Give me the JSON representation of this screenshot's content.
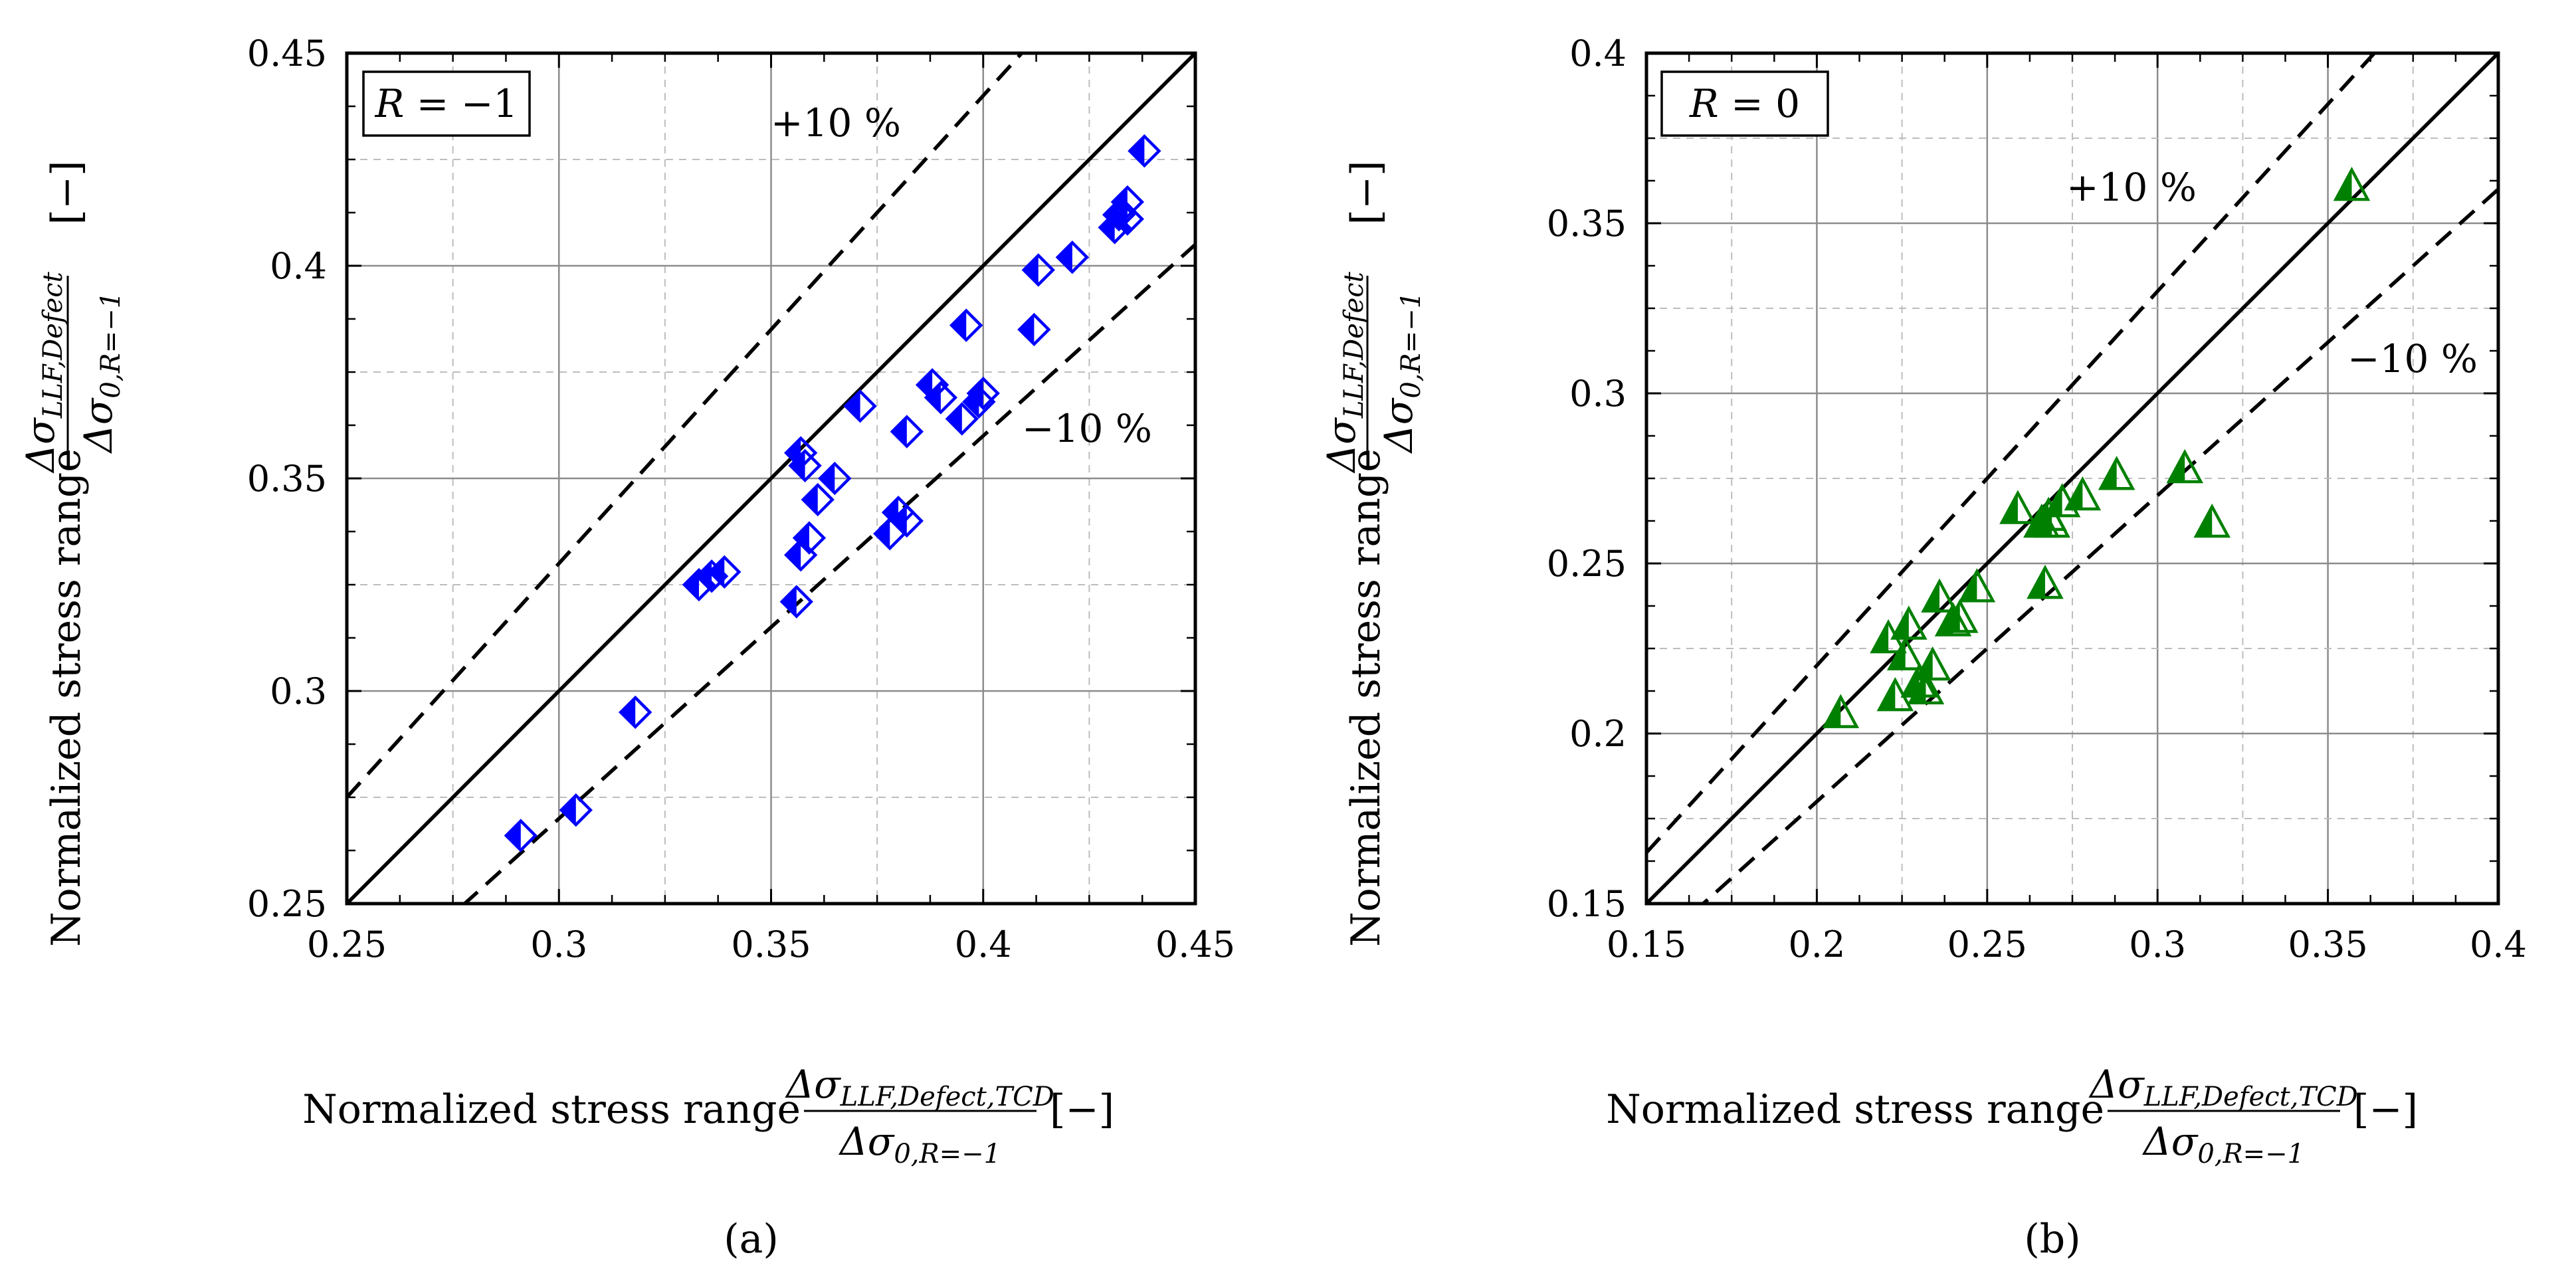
{
  "chart_data": [
    {
      "type": "scatter",
      "panel_label": "(a)",
      "annotation_box": {
        "lhs": "R",
        "eq": "=",
        "rhs": "−1"
      },
      "band_labels": {
        "upper": "+10 %",
        "lower": "−10 %"
      },
      "xlabel": {
        "prefix": "Normalized stress range",
        "num_sym": "Δσ",
        "num_sub": "LLF,Defect,TCD",
        "den_sym": "Δσ",
        "den_sub": "0,R=−1",
        "unit": "[−]"
      },
      "ylabel": {
        "prefix": "Normalized stress range",
        "num_sym": "Δσ",
        "num_sub": "LLF,Defect",
        "den_sym": "Δσ",
        "den_sub": "0,R=−1",
        "unit": "[−]"
      },
      "xlim": [
        0.25,
        0.45
      ],
      "ylim": [
        0.25,
        0.45
      ],
      "xticks": [
        0.25,
        0.3,
        0.35,
        0.4,
        0.45
      ],
      "yticks": [
        0.25,
        0.3,
        0.35,
        0.4,
        0.45
      ],
      "xtick_labels": [
        "0.25",
        "0.3",
        "0.35",
        "0.4",
        "0.45"
      ],
      "ytick_labels": [
        "0.25",
        "0.3",
        "0.35",
        "0.4",
        "0.45"
      ],
      "grid": true,
      "reference_lines": [
        {
          "type": "equality",
          "factor": 1.0,
          "style": "solid"
        },
        {
          "type": "band",
          "factor": 1.1,
          "style": "dashed"
        },
        {
          "type": "band",
          "factor": 0.9,
          "style": "dashed"
        }
      ],
      "marker": {
        "shape": "half-filled-diamond",
        "color": "#0000ff"
      },
      "points": [
        {
          "x": 0.291,
          "y": 0.266
        },
        {
          "x": 0.304,
          "y": 0.272
        },
        {
          "x": 0.318,
          "y": 0.295
        },
        {
          "x": 0.333,
          "y": 0.325
        },
        {
          "x": 0.336,
          "y": 0.327
        },
        {
          "x": 0.339,
          "y": 0.328
        },
        {
          "x": 0.356,
          "y": 0.321
        },
        {
          "x": 0.357,
          "y": 0.332
        },
        {
          "x": 0.359,
          "y": 0.336
        },
        {
          "x": 0.357,
          "y": 0.356
        },
        {
          "x": 0.358,
          "y": 0.353
        },
        {
          "x": 0.361,
          "y": 0.345
        },
        {
          "x": 0.365,
          "y": 0.35
        },
        {
          "x": 0.371,
          "y": 0.367
        },
        {
          "x": 0.378,
          "y": 0.337
        },
        {
          "x": 0.38,
          "y": 0.342
        },
        {
          "x": 0.382,
          "y": 0.34
        },
        {
          "x": 0.382,
          "y": 0.361
        },
        {
          "x": 0.388,
          "y": 0.372
        },
        {
          "x": 0.39,
          "y": 0.369
        },
        {
          "x": 0.395,
          "y": 0.364
        },
        {
          "x": 0.396,
          "y": 0.386
        },
        {
          "x": 0.399,
          "y": 0.368
        },
        {
          "x": 0.4,
          "y": 0.37
        },
        {
          "x": 0.412,
          "y": 0.385
        },
        {
          "x": 0.413,
          "y": 0.399
        },
        {
          "x": 0.421,
          "y": 0.402
        },
        {
          "x": 0.431,
          "y": 0.409
        },
        {
          "x": 0.432,
          "y": 0.412
        },
        {
          "x": 0.434,
          "y": 0.411
        },
        {
          "x": 0.434,
          "y": 0.415
        },
        {
          "x": 0.438,
          "y": 0.427
        }
      ]
    },
    {
      "type": "scatter",
      "panel_label": "(b)",
      "annotation_box": {
        "lhs": "R",
        "eq": "=",
        "rhs": "0"
      },
      "band_labels": {
        "upper": "+10 %",
        "lower": "−10 %"
      },
      "xlabel": {
        "prefix": "Normalized stress range",
        "num_sym": "Δσ",
        "num_sub": "LLF,Defect,TCD",
        "den_sym": "Δσ",
        "den_sub": "0,R=−1",
        "unit": "[−]"
      },
      "ylabel": {
        "prefix": "Normalized stress range",
        "num_sym": "Δσ",
        "num_sub": "LLF,Defect",
        "den_sym": "Δσ",
        "den_sub": "0,R=−1",
        "unit": "[−]"
      },
      "xlim": [
        0.15,
        0.4
      ],
      "ylim": [
        0.15,
        0.4
      ],
      "xticks": [
        0.15,
        0.2,
        0.25,
        0.3,
        0.35,
        0.4
      ],
      "yticks": [
        0.15,
        0.2,
        0.25,
        0.3,
        0.35,
        0.4
      ],
      "xtick_labels": [
        "0.15",
        "0.2",
        "0.25",
        "0.3",
        "0.35",
        "0.4"
      ],
      "ytick_labels": [
        "0.15",
        "0.2",
        "0.25",
        "0.3",
        "0.35",
        "0.4"
      ],
      "grid": true,
      "reference_lines": [
        {
          "type": "equality",
          "factor": 1.0,
          "style": "solid"
        },
        {
          "type": "band",
          "factor": 1.1,
          "style": "dashed"
        },
        {
          "type": "band",
          "factor": 0.9,
          "style": "dashed"
        }
      ],
      "marker": {
        "shape": "half-filled-triangle",
        "color": "#008000"
      },
      "points": [
        {
          "x": 0.207,
          "y": 0.206
        },
        {
          "x": 0.221,
          "y": 0.228
        },
        {
          "x": 0.223,
          "y": 0.211
        },
        {
          "x": 0.226,
          "y": 0.223
        },
        {
          "x": 0.227,
          "y": 0.232
        },
        {
          "x": 0.23,
          "y": 0.215
        },
        {
          "x": 0.232,
          "y": 0.213
        },
        {
          "x": 0.234,
          "y": 0.22
        },
        {
          "x": 0.236,
          "y": 0.24
        },
        {
          "x": 0.24,
          "y": 0.233
        },
        {
          "x": 0.242,
          "y": 0.234
        },
        {
          "x": 0.247,
          "y": 0.243
        },
        {
          "x": 0.259,
          "y": 0.266
        },
        {
          "x": 0.266,
          "y": 0.262
        },
        {
          "x": 0.268,
          "y": 0.264
        },
        {
          "x": 0.269,
          "y": 0.262
        },
        {
          "x": 0.267,
          "y": 0.244
        },
        {
          "x": 0.272,
          "y": 0.268
        },
        {
          "x": 0.278,
          "y": 0.27
        },
        {
          "x": 0.288,
          "y": 0.276
        },
        {
          "x": 0.308,
          "y": 0.278
        },
        {
          "x": 0.316,
          "y": 0.262
        },
        {
          "x": 0.357,
          "y": 0.361
        }
      ]
    }
  ]
}
